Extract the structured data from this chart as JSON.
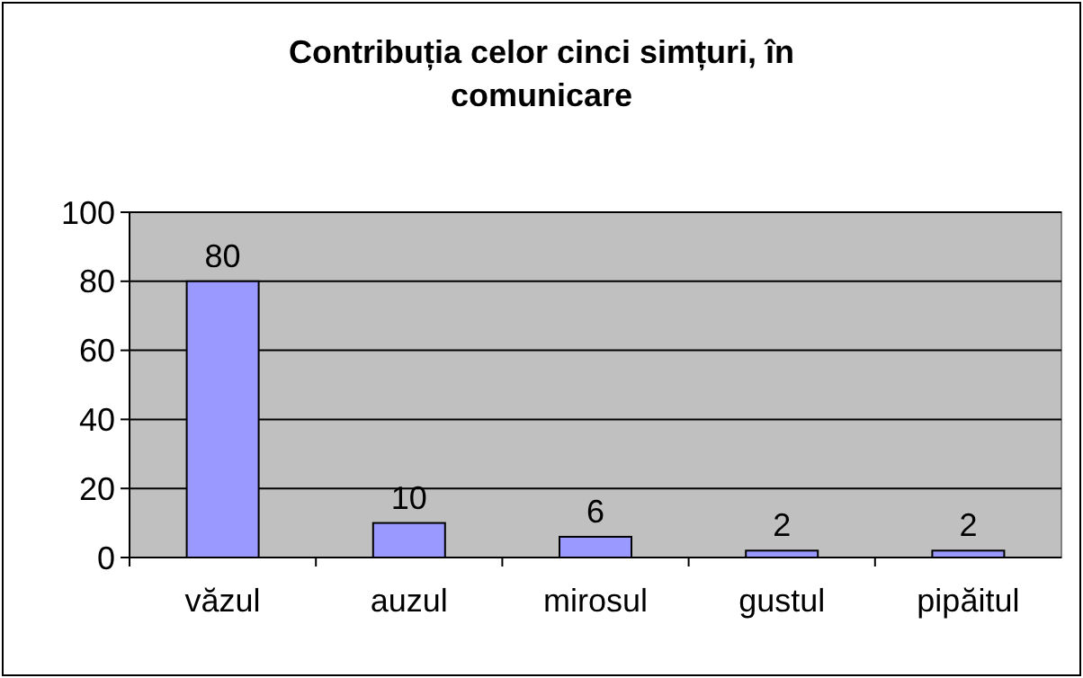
{
  "chart_data": {
    "type": "bar",
    "title": "Contribuția celor cinci simțuri, în comunicare",
    "categories": [
      "văzul",
      "auzul",
      "mirosul",
      "gustul",
      "pipăitul"
    ],
    "values": [
      80,
      10,
      6,
      2,
      2
    ],
    "color": "#9999ff",
    "ylim": [
      0,
      100
    ],
    "yticks": [
      0,
      20,
      40,
      60,
      80,
      100
    ],
    "grid": "y",
    "data_labels": true
  }
}
